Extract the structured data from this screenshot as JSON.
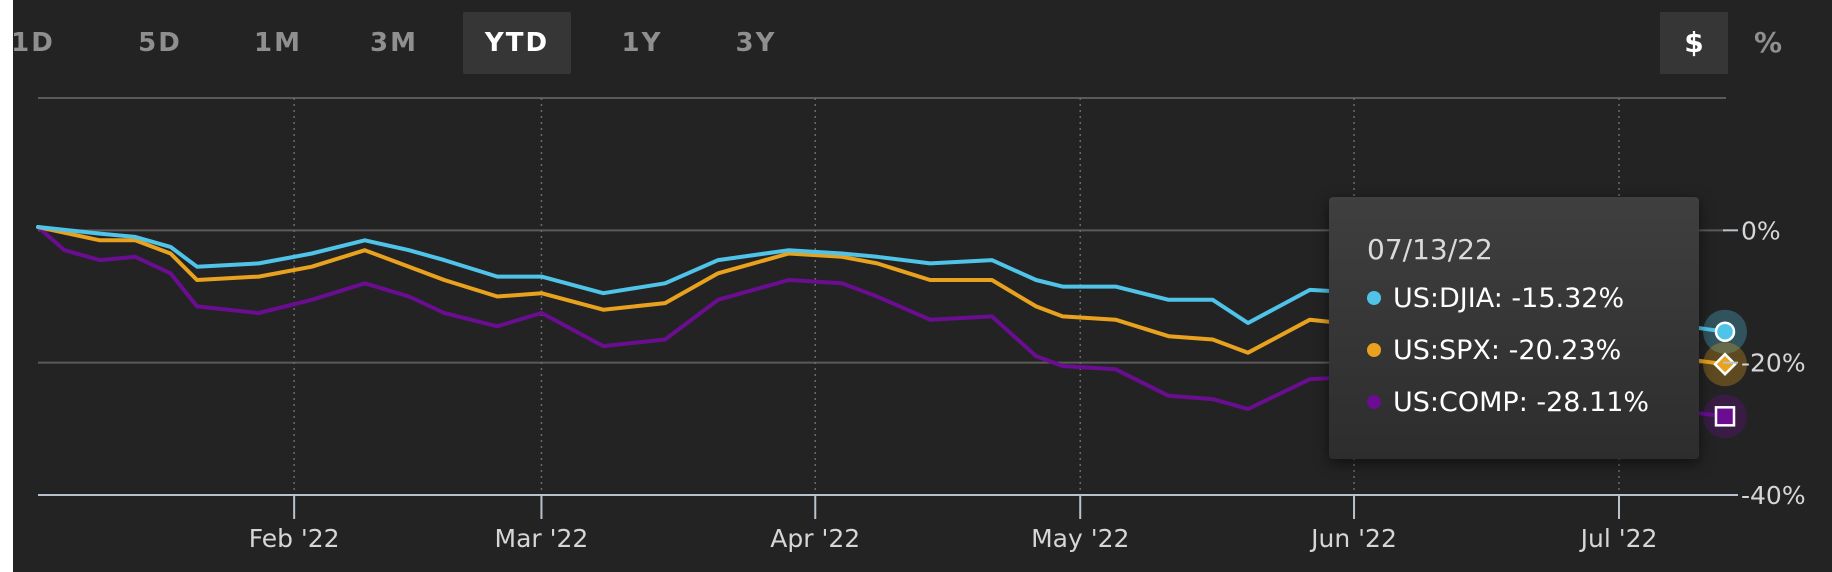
{
  "range_tabs": [
    {
      "label": "1D",
      "active": false
    },
    {
      "label": "5D",
      "active": false
    },
    {
      "label": "1M",
      "active": false
    },
    {
      "label": "3M",
      "active": false
    },
    {
      "label": "YTD",
      "active": true
    },
    {
      "label": "1Y",
      "active": false
    },
    {
      "label": "3Y",
      "active": false
    }
  ],
  "unit_toggle": {
    "dollar": "$",
    "percent": "%",
    "active": "$"
  },
  "colors": {
    "background": "#232323",
    "djia": "#4fc3e8",
    "spx": "#e8a21e",
    "comp": "#6a0d91"
  },
  "tooltip": {
    "date": "07/13/22",
    "rows": [
      {
        "name": "US:DJIA",
        "value": "-15.32%"
      },
      {
        "name": "US:SPX",
        "value": "-20.23%"
      },
      {
        "name": "US:COMP",
        "value": "-28.11%"
      }
    ]
  },
  "chart_data": {
    "type": "line",
    "title": "",
    "xlabel": "",
    "ylabel": "",
    "x_tick_labels": [
      "Feb '22",
      "Mar '22",
      "Apr '22",
      "May '22",
      "Jun '22",
      "Jul '22"
    ],
    "y_tick_labels": [
      "0%",
      "-20%",
      "-40%"
    ],
    "ylim": [
      -40,
      20
    ],
    "x_range": [
      "2022-01-03",
      "2022-07-13"
    ],
    "grid": "dotted vertical at month starts, solid horizontal at y ticks",
    "series": [
      {
        "name": "US:DJIA",
        "marker": "circle",
        "points": [
          [
            "2022-01-03",
            0.5
          ],
          [
            "2022-01-10",
            -0.5
          ],
          [
            "2022-01-14",
            -1.0
          ],
          [
            "2022-01-18",
            -2.5
          ],
          [
            "2022-01-21",
            -5.5
          ],
          [
            "2022-01-28",
            -5.0
          ],
          [
            "2022-02-03",
            -3.5
          ],
          [
            "2022-02-09",
            -1.5
          ],
          [
            "2022-02-14",
            -3.0
          ],
          [
            "2022-02-18",
            -4.5
          ],
          [
            "2022-02-24",
            -7.0
          ],
          [
            "2022-03-01",
            -7.0
          ],
          [
            "2022-03-08",
            -9.5
          ],
          [
            "2022-03-15",
            -8.0
          ],
          [
            "2022-03-21",
            -4.5
          ],
          [
            "2022-03-29",
            -3.0
          ],
          [
            "2022-04-04",
            -3.5
          ],
          [
            "2022-04-08",
            -4.0
          ],
          [
            "2022-04-14",
            -5.0
          ],
          [
            "2022-04-21",
            -4.5
          ],
          [
            "2022-04-26",
            -7.5
          ],
          [
            "2022-04-29",
            -8.5
          ],
          [
            "2022-05-05",
            -8.5
          ],
          [
            "2022-05-11",
            -10.5
          ],
          [
            "2022-05-16",
            -10.5
          ],
          [
            "2022-05-20",
            -14.0
          ],
          [
            "2022-05-27",
            -9.0
          ],
          [
            "2022-06-03",
            -9.5
          ],
          [
            "2022-06-13",
            -15.0
          ],
          [
            "2022-06-16",
            -17.0
          ],
          [
            "2022-06-23",
            -13.5
          ],
          [
            "2022-06-30",
            -13.0
          ],
          [
            "2022-07-06",
            -14.0
          ],
          [
            "2022-07-13",
            -15.32
          ]
        ]
      },
      {
        "name": "US:SPX",
        "marker": "diamond",
        "points": [
          [
            "2022-01-03",
            0.5
          ],
          [
            "2022-01-10",
            -1.5
          ],
          [
            "2022-01-14",
            -1.5
          ],
          [
            "2022-01-18",
            -3.5
          ],
          [
            "2022-01-21",
            -7.5
          ],
          [
            "2022-01-28",
            -7.0
          ],
          [
            "2022-02-03",
            -5.5
          ],
          [
            "2022-02-09",
            -3.0
          ],
          [
            "2022-02-14",
            -5.5
          ],
          [
            "2022-02-18",
            -7.5
          ],
          [
            "2022-02-24",
            -10.0
          ],
          [
            "2022-03-01",
            -9.5
          ],
          [
            "2022-03-08",
            -12.0
          ],
          [
            "2022-03-15",
            -11.0
          ],
          [
            "2022-03-21",
            -6.5
          ],
          [
            "2022-03-29",
            -3.5
          ],
          [
            "2022-04-04",
            -4.0
          ],
          [
            "2022-04-08",
            -5.0
          ],
          [
            "2022-04-14",
            -7.5
          ],
          [
            "2022-04-21",
            -7.5
          ],
          [
            "2022-04-26",
            -11.5
          ],
          [
            "2022-04-29",
            -13.0
          ],
          [
            "2022-05-05",
            -13.5
          ],
          [
            "2022-05-11",
            -16.0
          ],
          [
            "2022-05-16",
            -16.5
          ],
          [
            "2022-05-20",
            -18.5
          ],
          [
            "2022-05-27",
            -13.5
          ],
          [
            "2022-06-03",
            -14.5
          ],
          [
            "2022-06-13",
            -21.5
          ],
          [
            "2022-06-16",
            -23.5
          ],
          [
            "2022-06-23",
            -19.5
          ],
          [
            "2022-06-30",
            -20.5
          ],
          [
            "2022-07-06",
            -19.0
          ],
          [
            "2022-07-13",
            -20.23
          ]
        ]
      },
      {
        "name": "US:COMP",
        "marker": "square",
        "points": [
          [
            "2022-01-03",
            0.5
          ],
          [
            "2022-01-06",
            -3.0
          ],
          [
            "2022-01-10",
            -4.5
          ],
          [
            "2022-01-14",
            -4.0
          ],
          [
            "2022-01-18",
            -6.5
          ],
          [
            "2022-01-21",
            -11.5
          ],
          [
            "2022-01-28",
            -12.5
          ],
          [
            "2022-02-03",
            -10.5
          ],
          [
            "2022-02-09",
            -8.0
          ],
          [
            "2022-02-14",
            -10.0
          ],
          [
            "2022-02-18",
            -12.5
          ],
          [
            "2022-02-24",
            -14.5
          ],
          [
            "2022-03-01",
            -12.5
          ],
          [
            "2022-03-08",
            -17.5
          ],
          [
            "2022-03-15",
            -16.5
          ],
          [
            "2022-03-21",
            -10.5
          ],
          [
            "2022-03-29",
            -7.5
          ],
          [
            "2022-04-04",
            -8.0
          ],
          [
            "2022-04-08",
            -10.0
          ],
          [
            "2022-04-14",
            -13.5
          ],
          [
            "2022-04-21",
            -13.0
          ],
          [
            "2022-04-26",
            -19.0
          ],
          [
            "2022-04-29",
            -20.5
          ],
          [
            "2022-05-05",
            -21.0
          ],
          [
            "2022-05-11",
            -25.0
          ],
          [
            "2022-05-16",
            -25.5
          ],
          [
            "2022-05-20",
            -27.0
          ],
          [
            "2022-05-27",
            -22.5
          ],
          [
            "2022-06-03",
            -22.0
          ],
          [
            "2022-06-13",
            -28.5
          ],
          [
            "2022-06-16",
            -31.0
          ],
          [
            "2022-06-23",
            -26.5
          ],
          [
            "2022-06-30",
            -28.0
          ],
          [
            "2022-07-06",
            -27.0
          ],
          [
            "2022-07-13",
            -28.11
          ]
        ]
      }
    ]
  }
}
